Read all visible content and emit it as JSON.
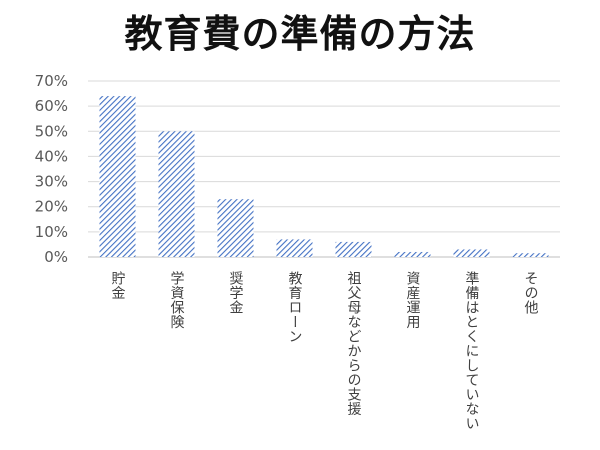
{
  "chart_data": {
    "type": "bar",
    "title": "教育費の準備の方法",
    "xlabel": "",
    "ylabel": "",
    "categories": [
      "貯金",
      "学資保険",
      "奨学金",
      "教育ローン",
      "祖父母などからの支援",
      "資産運用",
      "準備はとくにしていない",
      "その他"
    ],
    "values": [
      64,
      50,
      23,
      7,
      6,
      2,
      3,
      1.5
    ],
    "unit": "%",
    "ylim": [
      0,
      70
    ],
    "yticks": [
      "0%",
      "10%",
      "20%",
      "30%",
      "40%",
      "50%",
      "60%",
      "70%"
    ],
    "grid": true,
    "legend": "none",
    "bar_color": "#4472c4",
    "bar_fill_pattern": "diagonal-hatch"
  }
}
